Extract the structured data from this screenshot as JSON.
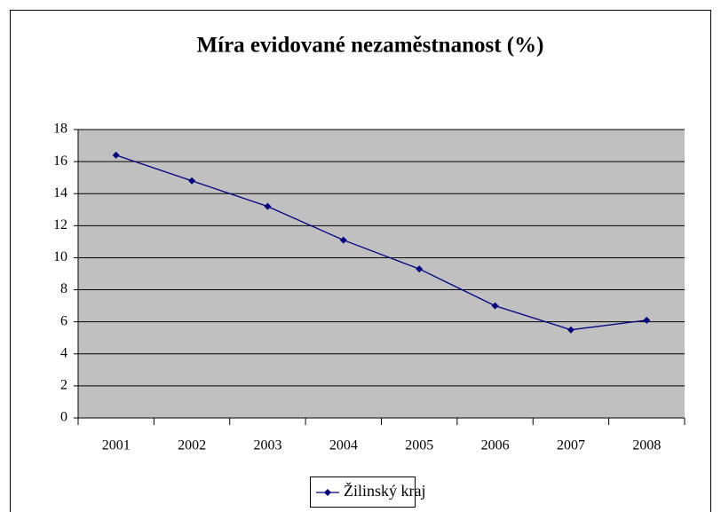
{
  "chart_data": {
    "type": "line",
    "title": "Míra evidované nezaměstnanost (%)",
    "categories": [
      "2001",
      "2002",
      "2003",
      "2004",
      "2005",
      "2006",
      "2007",
      "2008"
    ],
    "series": [
      {
        "name": "Žilinský kraj",
        "color": "#000080",
        "values": [
          16.4,
          14.8,
          13.2,
          11.1,
          9.3,
          7.0,
          5.5,
          6.1
        ]
      }
    ],
    "ylim": [
      0,
      18
    ],
    "yticks": [
      0,
      2,
      4,
      6,
      8,
      10,
      12,
      14,
      16,
      18
    ],
    "grid": true,
    "legend": "bottom"
  }
}
